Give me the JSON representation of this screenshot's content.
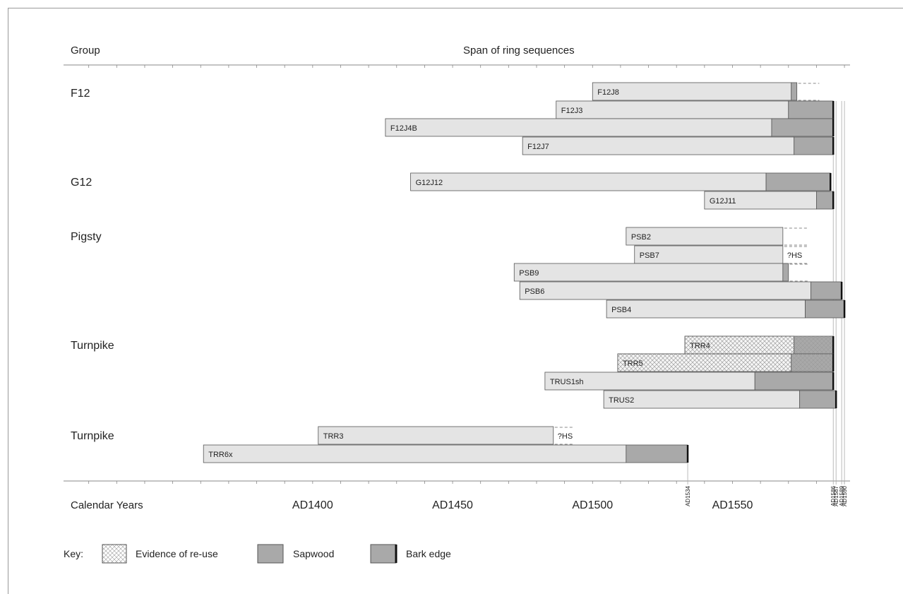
{
  "chart_data": {
    "type": "bar",
    "title": "",
    "headers": {
      "group": "Group",
      "span": "Span of ring sequences",
      "xaxis": "Calendar Years"
    },
    "x_ticks": [
      {
        "year": 1400,
        "label": "AD1400"
      },
      {
        "year": 1450,
        "label": "AD1450"
      },
      {
        "year": 1500,
        "label": "AD1500"
      },
      {
        "year": 1550,
        "label": "AD1550"
      }
    ],
    "xlim": [
      1311,
      1592
    ],
    "year_markers": [
      {
        "year": 1534,
        "label": "AD1534"
      },
      {
        "year": 1586,
        "label": "AD1586"
      },
      {
        "year": 1587,
        "label": "AD1587"
      },
      {
        "year": 1589,
        "label": "AD1589"
      },
      {
        "year": 1590,
        "label": "AD1590"
      }
    ],
    "groups": [
      {
        "name": "F12",
        "samples": [
          {
            "id": "F12J8",
            "start": 1500,
            "sapwood_start": 1571,
            "end": 1573,
            "reuse": false,
            "bark": false,
            "dashed_end": 1581,
            "note": ""
          },
          {
            "id": "F12J3",
            "start": 1487,
            "sapwood_start": 1570,
            "end": 1586,
            "reuse": false,
            "bark": true,
            "dashed_end": null,
            "note": ""
          },
          {
            "id": "F12J4B",
            "start": 1426,
            "sapwood_start": 1564,
            "end": 1586,
            "reuse": false,
            "bark": true,
            "dashed_end": null,
            "note": ""
          },
          {
            "id": "F12J7",
            "start": 1475,
            "sapwood_start": 1572,
            "end": 1586,
            "reuse": false,
            "bark": true,
            "dashed_end": null,
            "note": ""
          }
        ]
      },
      {
        "name": "G12",
        "samples": [
          {
            "id": "G12J12",
            "start": 1435,
            "sapwood_start": 1562,
            "end": 1585,
            "reuse": false,
            "bark": true,
            "dashed_end": null,
            "note": ""
          },
          {
            "id": "G12J11",
            "start": 1540,
            "sapwood_start": 1580,
            "end": 1586,
            "reuse": false,
            "bark": true,
            "dashed_end": null,
            "note": ""
          }
        ]
      },
      {
        "name": "Pigsty",
        "samples": [
          {
            "id": "PSB2",
            "start": 1512,
            "sapwood_start": null,
            "end": 1568,
            "reuse": false,
            "bark": false,
            "dashed_end": 1577,
            "note": ""
          },
          {
            "id": "PSB7",
            "start": 1515,
            "sapwood_start": null,
            "end": 1568,
            "reuse": false,
            "bark": false,
            "dashed_end": 1577,
            "note": "?HS"
          },
          {
            "id": "PSB9",
            "start": 1472,
            "sapwood_start": 1568,
            "end": 1570,
            "reuse": false,
            "bark": false,
            "dashed_end": 1577,
            "note": ""
          },
          {
            "id": "PSB6",
            "start": 1474,
            "sapwood_start": 1578,
            "end": 1589,
            "reuse": false,
            "bark": true,
            "dashed_end": null,
            "note": ""
          },
          {
            "id": "PSB4",
            "start": 1505,
            "sapwood_start": 1576,
            "end": 1590,
            "reuse": false,
            "bark": true,
            "dashed_end": null,
            "note": ""
          }
        ]
      },
      {
        "name": "Turnpike",
        "samples": [
          {
            "id": "TRR4",
            "start": 1533,
            "sapwood_start": 1572,
            "end": 1586,
            "reuse": true,
            "bark": true,
            "dashed_end": null,
            "note": ""
          },
          {
            "id": "TRR5",
            "start": 1509,
            "sapwood_start": 1571,
            "end": 1586,
            "reuse": true,
            "bark": true,
            "dashed_end": null,
            "note": ""
          },
          {
            "id": "TRUS1sh",
            "start": 1483,
            "sapwood_start": 1558,
            "end": 1586,
            "reuse": false,
            "bark": true,
            "dashed_end": null,
            "note": ""
          },
          {
            "id": "TRUS2",
            "start": 1504,
            "sapwood_start": 1574,
            "end": 1587,
            "reuse": false,
            "bark": true,
            "dashed_end": null,
            "note": ""
          }
        ]
      },
      {
        "name": "Turnpike",
        "samples": [
          {
            "id": "TRR3",
            "start": 1402,
            "sapwood_start": null,
            "end": 1486,
            "reuse": false,
            "bark": false,
            "dashed_end": 1493,
            "note": "?HS"
          },
          {
            "id": "TRR6x",
            "start": 1361,
            "sapwood_start": 1512,
            "end": 1534,
            "reuse": false,
            "bark": true,
            "dashed_end": null,
            "note": ""
          }
        ]
      }
    ],
    "legend": {
      "title": "Key:",
      "items": [
        "Evidence of re-use",
        "Sapwood",
        "Bark edge"
      ],
      "placement": "bottom-left"
    },
    "grid": false
  },
  "colors": {
    "heartwood": "#e4e4e4",
    "sapwood": "#a9a9a9",
    "outline": "#555555",
    "bark": "#111111",
    "axis": "#888888"
  }
}
